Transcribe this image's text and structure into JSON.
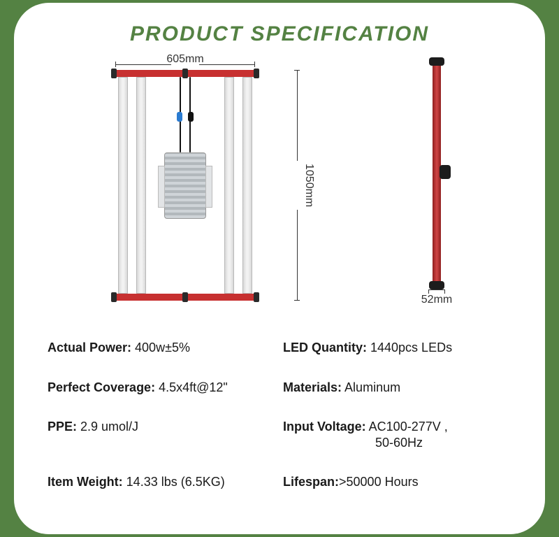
{
  "title": "PRODUCT SPECIFICATION",
  "dimensions": {
    "width_label": "605mm",
    "height_label": "1050mm",
    "depth_label": "52mm"
  },
  "diagram_colors": {
    "red_bar": "#c73030",
    "black_cap": "#2a2a2a",
    "aluminum_light": "#f2f2f2",
    "aluminum_dark": "#d8d8d8",
    "driver_light": "#cfd4d8",
    "driver_dark": "#b2b8bc",
    "connector_blue": "#2a7bd1",
    "side_red": "#d04545"
  },
  "specs": {
    "actual_power": {
      "label": "Actual Power:",
      "value": " 400w±5%"
    },
    "led_quantity": {
      "label": "LED Quantity:",
      "value": " 1440pcs LEDs"
    },
    "perfect_coverage": {
      "label": "Perfect Coverage:",
      "value": " 4.5x4ft@12\""
    },
    "materials": {
      "label": "Materials:",
      "value": " Aluminum"
    },
    "ppe": {
      "label": "PPE:",
      "value": " 2.9 umol/J"
    },
    "input_voltage": {
      "label": "Input Voltage:",
      "value": " AC100-277V ,",
      "value2": "50-60Hz"
    },
    "item_weight": {
      "label": "Item Weight:",
      "value": "  14.33 lbs (6.5KG)"
    },
    "lifespan": {
      "label": "Lifespan:",
      "value": ">50000 Hours"
    }
  },
  "theme": {
    "background": "#548243",
    "card_background": "#ffffff",
    "title_color": "#548243",
    "text_color": "#1a1a1a"
  }
}
